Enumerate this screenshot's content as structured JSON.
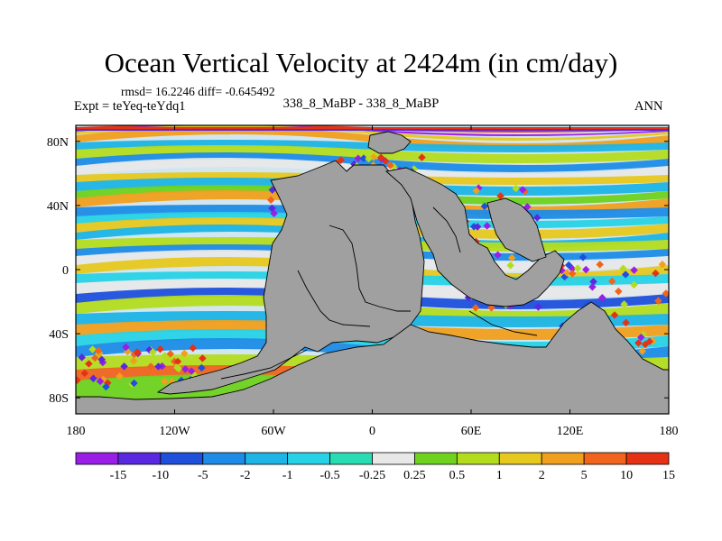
{
  "chart_data": {
    "type": "heatmap",
    "title": "Ocean Vertical Velocity at 2424m (in cm/day)",
    "stats_text": "rmsd= 16.2246 diff= -0.645492",
    "experiment_text": "Expt = teYeq-teYdq1",
    "subtitle": "338_8_MaBP - 338_8_MaBP",
    "season": "ANN",
    "x_ticks": [
      "180",
      "120W",
      "60W",
      "0",
      "60E",
      "120E",
      "180"
    ],
    "x_tick_values": [
      -180,
      -120,
      -60,
      0,
      60,
      120,
      180
    ],
    "y_ticks": [
      "80N",
      "40N",
      "0",
      "40S",
      "80S"
    ],
    "y_tick_values": [
      80,
      40,
      0,
      -40,
      -80
    ],
    "xlim": [
      -180,
      180
    ],
    "ylim": [
      -90,
      90
    ],
    "colorbar_labels": [
      "-15",
      "-10",
      "-5",
      "-2",
      "-1",
      "-0.5",
      "-0.25",
      "0.25",
      "0.5",
      "1",
      "2",
      "5",
      "10",
      "15"
    ],
    "colorbar_colors": [
      "#9a1ee6",
      "#5a28e0",
      "#1e50dc",
      "#1e8ce6",
      "#1eb4e6",
      "#28d2e6",
      "#2adcb4",
      "#e8e8e8",
      "#6ed21e",
      "#b4dc1e",
      "#e6c81e",
      "#f0a01e",
      "#f0641e",
      "#e63214"
    ],
    "land_color": "#a0a0a0"
  }
}
